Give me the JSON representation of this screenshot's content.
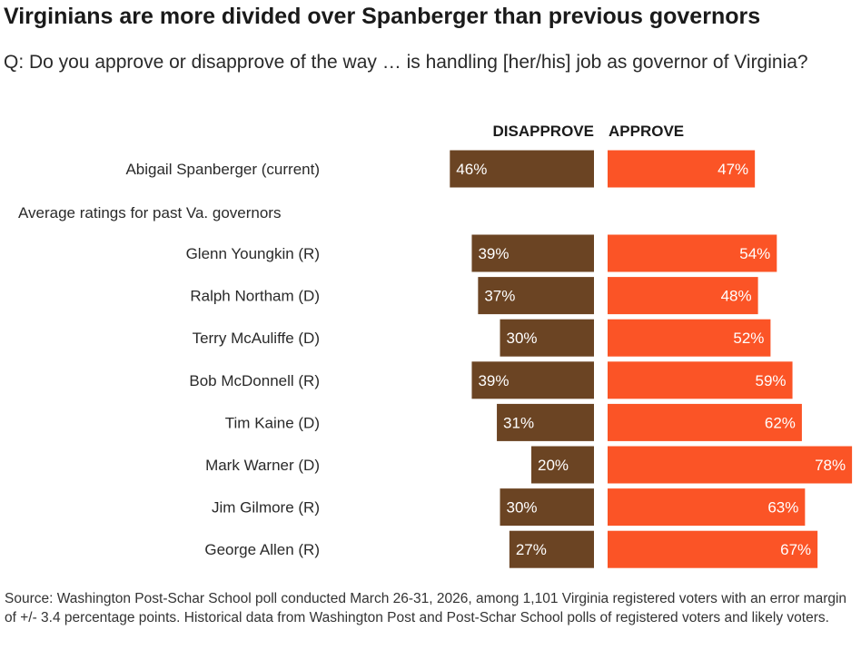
{
  "title": "Virginians are more divided over Spanberger than previous governors",
  "subtitle": "Q: Do you approve or disapprove of the way … is handling [her/his] job as governor of Virginia?",
  "source": "Source: Washington Post-Schar School poll conducted March 26-31, 2026, among 1,101 Virginia registered voters with an error margin of +/- 3.4 percentage points. Historical data from Washington Post and Post-Schar School polls of registered voters and likely voters.",
  "colors": {
    "disapprove": "#6b4423",
    "approve": "#fb5426"
  },
  "chart_data": {
    "type": "bar",
    "orientation": "horizontal-diverging",
    "title": "Virginians are more divided over Spanberger than previous governors",
    "series_headers": {
      "disapprove": "DISAPPROVE",
      "approve": "APPROVE"
    },
    "value_unit": "%",
    "xlim": [
      0,
      100
    ],
    "current": {
      "name": "Abigail Spanberger (current)",
      "disapprove": 46,
      "approve": 47
    },
    "section_label": "Average ratings for past Va. governors",
    "past": [
      {
        "name": "Glenn Youngkin (R)",
        "disapprove": 39,
        "approve": 54
      },
      {
        "name": "Ralph Northam (D)",
        "disapprove": 37,
        "approve": 48
      },
      {
        "name": "Terry McAuliffe (D)",
        "disapprove": 30,
        "approve": 52
      },
      {
        "name": "Bob McDonnell (R)",
        "disapprove": 39,
        "approve": 59
      },
      {
        "name": "Tim Kaine (D)",
        "disapprove": 31,
        "approve": 62
      },
      {
        "name": "Mark Warner (D)",
        "disapprove": 20,
        "approve": 78
      },
      {
        "name": "Jim Gilmore (R)",
        "disapprove": 30,
        "approve": 63
      },
      {
        "name": "George Allen (R)",
        "disapprove": 27,
        "approve": 67
      }
    ]
  }
}
